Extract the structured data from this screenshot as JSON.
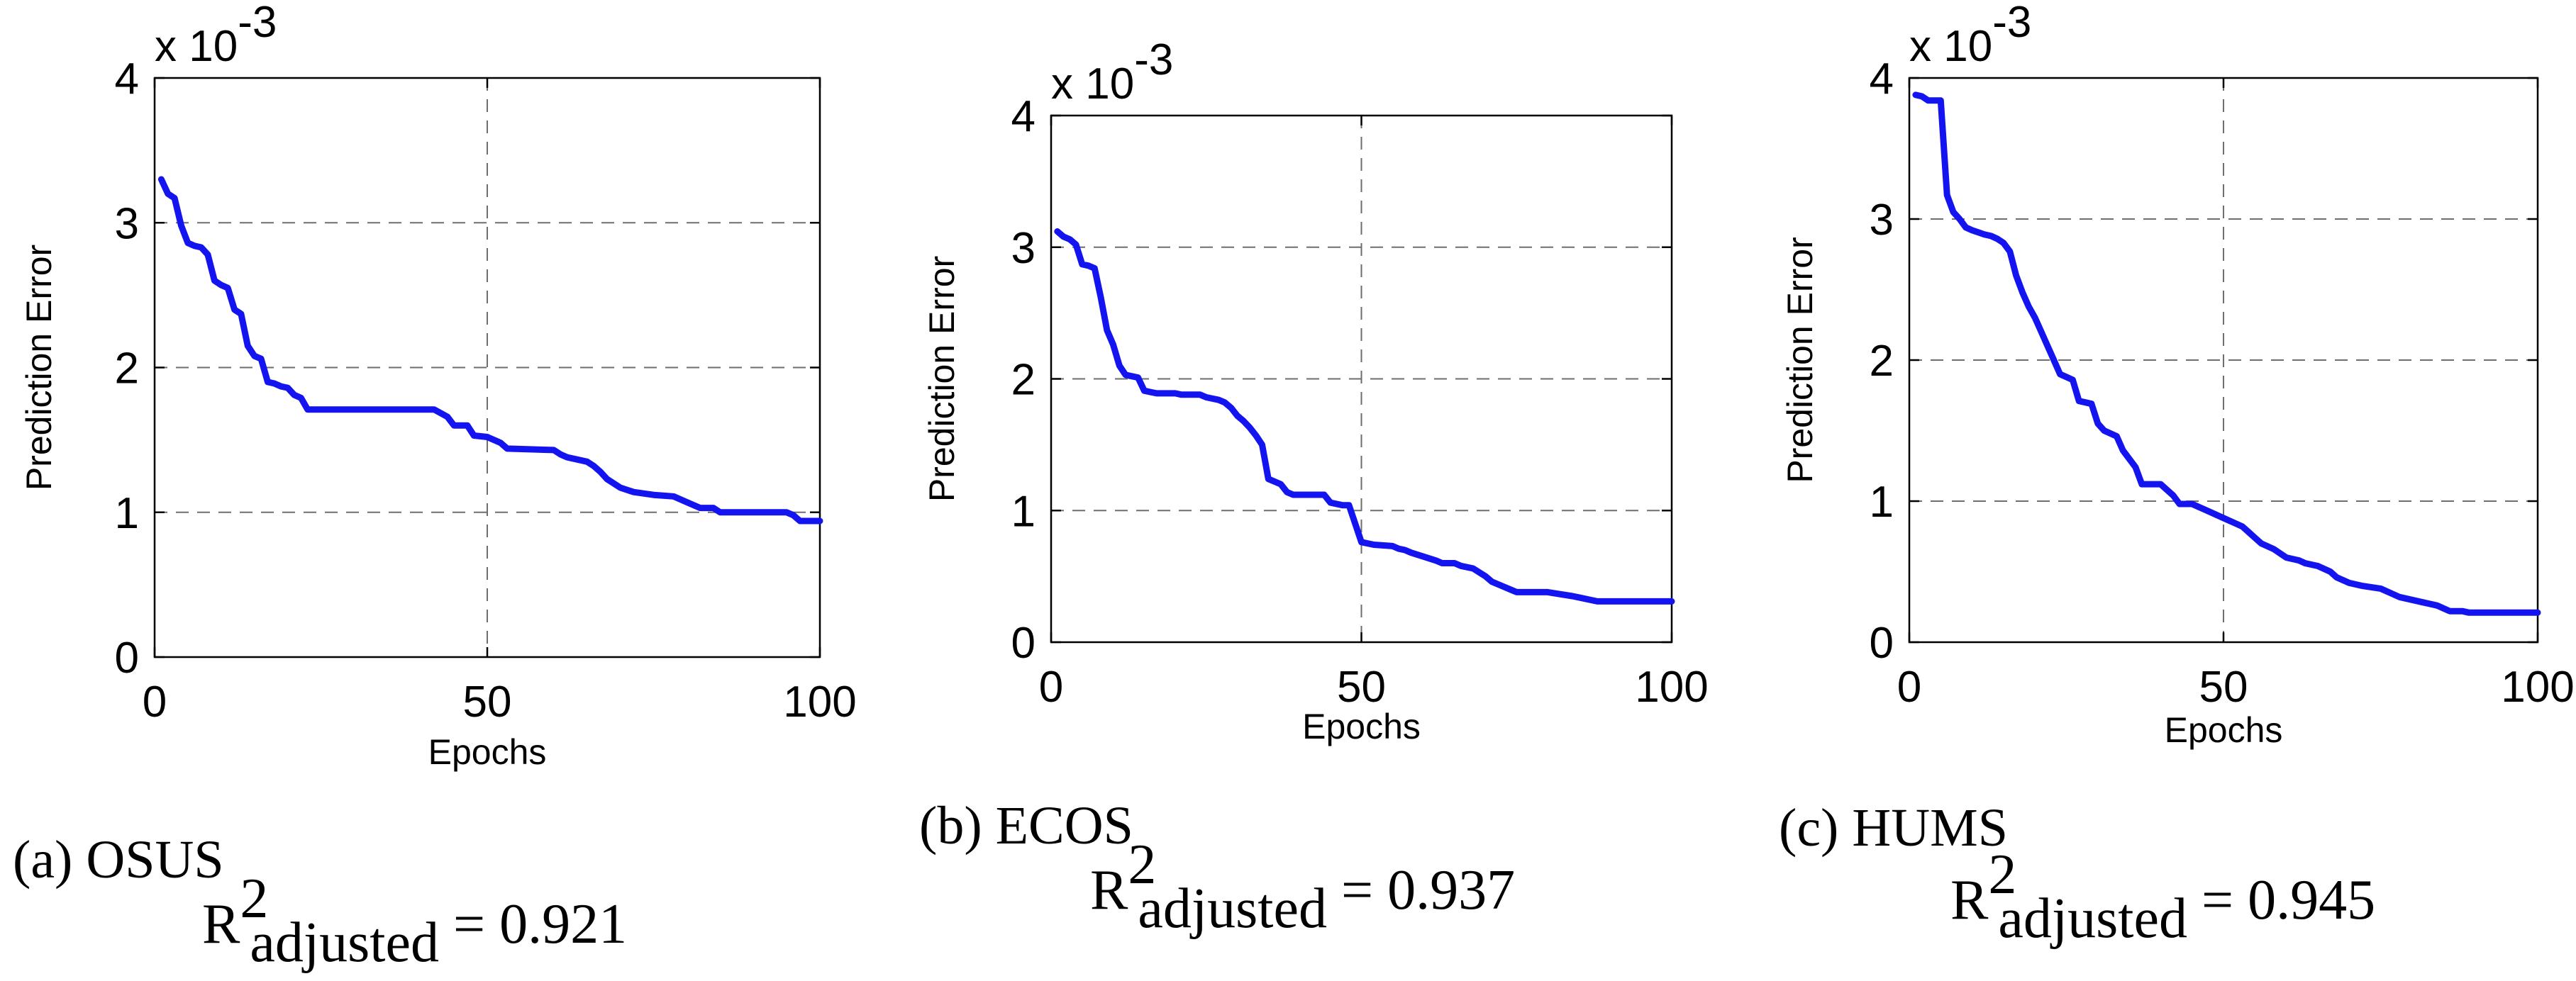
{
  "figure_colors": {
    "line": "#1414f0",
    "grid": "#6e6e6e",
    "axis": "#000000"
  },
  "chart_data": [
    {
      "type": "line",
      "panel": "a",
      "caption_letter": "a",
      "caption_name": "OSUS",
      "r2_symbol": "R",
      "r2_sup": "2",
      "r2_sub": "adjusted",
      "r2_value": "= 0.921",
      "xlabel": "Epochs",
      "ylabel": "Prediction Error",
      "exponent_label": "x 10",
      "exponent_power": "-3",
      "xlim": [
        0,
        100
      ],
      "ylim": [
        0,
        4
      ],
      "xticks": [
        0,
        50,
        100
      ],
      "xtick_labels": [
        "0",
        "50",
        "100"
      ],
      "yticks": [
        0,
        1,
        2,
        3,
        4
      ],
      "ytick_labels": [
        "0",
        "1",
        "2",
        "3",
        "4"
      ],
      "grid": true,
      "series": [
        {
          "name": "OSUS",
          "x": [
            1,
            2,
            3,
            4,
            5,
            6,
            7,
            8,
            9,
            10,
            11,
            12,
            13,
            14,
            15,
            16,
            17,
            18,
            19,
            20,
            21,
            22,
            23,
            30,
            40,
            42,
            44,
            45,
            47,
            48,
            50,
            52,
            53,
            60,
            61,
            62,
            65,
            66,
            67,
            68,
            70,
            72,
            75,
            78,
            80,
            82,
            84,
            85,
            90,
            95,
            96,
            97,
            100
          ],
          "values": [
            3.3,
            3.2,
            3.17,
            2.98,
            2.86,
            2.84,
            2.83,
            2.78,
            2.6,
            2.57,
            2.55,
            2.4,
            2.37,
            2.15,
            2.08,
            2.06,
            1.9,
            1.89,
            1.87,
            1.86,
            1.81,
            1.79,
            1.71,
            1.71,
            1.71,
            1.71,
            1.66,
            1.6,
            1.6,
            1.53,
            1.52,
            1.48,
            1.44,
            1.43,
            1.4,
            1.38,
            1.35,
            1.32,
            1.28,
            1.23,
            1.17,
            1.14,
            1.12,
            1.11,
            1.07,
            1.03,
            1.03,
            1.0,
            1.0,
            1.0,
            0.98,
            0.94,
            0.94
          ]
        }
      ]
    },
    {
      "type": "line",
      "panel": "b",
      "caption_letter": "b",
      "caption_name": "ECOS",
      "r2_symbol": "R",
      "r2_sup": "2",
      "r2_sub": "adjusted",
      "r2_value": "= 0.937",
      "xlabel": "Epochs",
      "ylabel": "Prediction Error",
      "exponent_label": "x 10",
      "exponent_power": "-3",
      "xlim": [
        0,
        100
      ],
      "ylim": [
        0,
        4
      ],
      "xticks": [
        0,
        50,
        100
      ],
      "xtick_labels": [
        "0",
        "50",
        "100"
      ],
      "yticks": [
        0,
        1,
        2,
        3,
        4
      ],
      "ytick_labels": [
        "0",
        "1",
        "2",
        "3",
        "4"
      ],
      "grid": true,
      "series": [
        {
          "name": "ECOS",
          "x": [
            1,
            2,
            3,
            4,
            5,
            6,
            7,
            8,
            9,
            10,
            11,
            12,
            13,
            14,
            15,
            16,
            17,
            20,
            21,
            24,
            25,
            27,
            28,
            29,
            30,
            31,
            32,
            33,
            34,
            35,
            36,
            37,
            38,
            39,
            40,
            44,
            45,
            47,
            48,
            50,
            52,
            55,
            56,
            57,
            58,
            62,
            63,
            65,
            66,
            68,
            70,
            71,
            73,
            74,
            75,
            80,
            84,
            85,
            88,
            100
          ],
          "values": [
            3.12,
            3.08,
            3.06,
            3.02,
            2.87,
            2.86,
            2.84,
            2.62,
            2.37,
            2.26,
            2.1,
            2.03,
            2.02,
            2.01,
            1.91,
            1.9,
            1.89,
            1.89,
            1.88,
            1.88,
            1.86,
            1.84,
            1.82,
            1.78,
            1.72,
            1.68,
            1.63,
            1.57,
            1.5,
            1.24,
            1.22,
            1.2,
            1.14,
            1.12,
            1.12,
            1.12,
            1.06,
            1.04,
            1.04,
            0.76,
            0.74,
            0.73,
            0.71,
            0.7,
            0.68,
            0.62,
            0.6,
            0.6,
            0.58,
            0.56,
            0.5,
            0.46,
            0.42,
            0.4,
            0.38,
            0.38,
            0.35,
            0.34,
            0.31,
            0.31
          ]
        }
      ]
    },
    {
      "type": "line",
      "panel": "c",
      "caption_letter": "c",
      "caption_name": "HUMS",
      "r2_symbol": "R",
      "r2_sup": "2",
      "r2_sub": "adjusted",
      "r2_value": "= 0.945",
      "xlabel": "Epochs",
      "ylabel": "Prediction Error",
      "exponent_label": "x 10",
      "exponent_power": "-3",
      "xlim": [
        0,
        100
      ],
      "ylim": [
        0,
        4
      ],
      "xticks": [
        0,
        50,
        100
      ],
      "xtick_labels": [
        "0",
        "50",
        "100"
      ],
      "yticks": [
        0,
        1,
        2,
        3,
        4
      ],
      "ytick_labels": [
        "0",
        "1",
        "2",
        "3",
        "4"
      ],
      "grid": true,
      "series": [
        {
          "name": "HUMS",
          "x": [
            1,
            2,
            3,
            5,
            6,
            7,
            8,
            9,
            10,
            12,
            13,
            14,
            15,
            16,
            17,
            18,
            19,
            20,
            21,
            22,
            23,
            24,
            25,
            26,
            27,
            28,
            29,
            30,
            31,
            33,
            34,
            35,
            36,
            37,
            38,
            40,
            41,
            42,
            43,
            45,
            46,
            47,
            48,
            50,
            52,
            53,
            55,
            56,
            58,
            60,
            62,
            63,
            65,
            67,
            68,
            70,
            72,
            75,
            77,
            78,
            80,
            82,
            84,
            85,
            86,
            88,
            89,
            100
          ],
          "values": [
            3.88,
            3.87,
            3.84,
            3.84,
            3.17,
            3.05,
            3.0,
            2.94,
            2.92,
            2.89,
            2.88,
            2.86,
            2.83,
            2.77,
            2.6,
            2.48,
            2.38,
            2.3,
            2.2,
            2.1,
            2.0,
            1.9,
            1.88,
            1.86,
            1.71,
            1.7,
            1.69,
            1.55,
            1.5,
            1.46,
            1.36,
            1.3,
            1.24,
            1.12,
            1.12,
            1.12,
            1.08,
            1.04,
            0.98,
            0.98,
            0.96,
            0.94,
            0.92,
            0.88,
            0.84,
            0.82,
            0.74,
            0.7,
            0.66,
            0.6,
            0.58,
            0.56,
            0.54,
            0.5,
            0.46,
            0.42,
            0.4,
            0.38,
            0.34,
            0.32,
            0.3,
            0.28,
            0.26,
            0.24,
            0.22,
            0.22,
            0.21,
            0.21
          ]
        }
      ]
    }
  ]
}
